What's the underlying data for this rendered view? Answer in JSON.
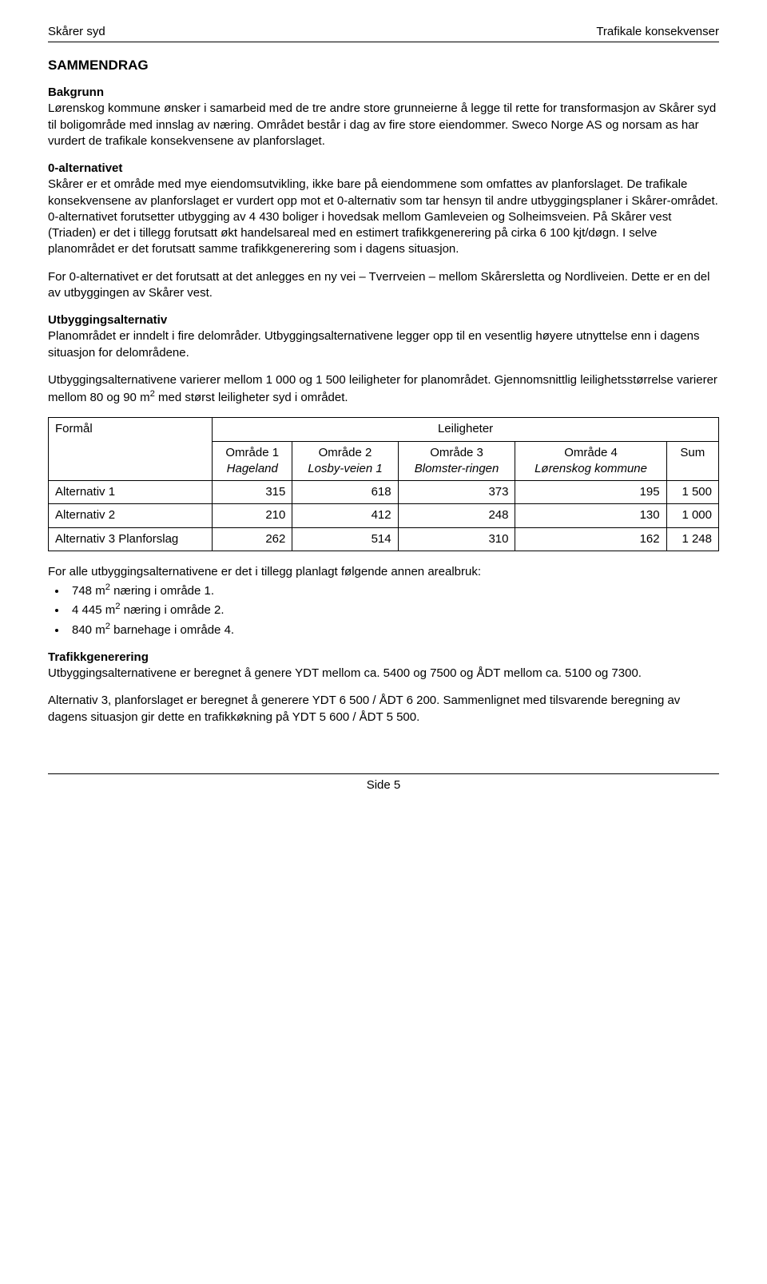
{
  "header": {
    "left": "Skårer syd",
    "right": "Trafikale konsekvenser"
  },
  "sammendrag": {
    "title": "SAMMENDRAG",
    "bakgrunn_title": "Bakgrunn",
    "bakgrunn_text": "Lørenskog kommune ønsker i samarbeid med de tre andre store grunneierne å legge til rette for transformasjon av Skårer syd til boligområde med innslag av næring. Området består i dag av fire store eiendommer. Sweco Norge AS og norsam as har vurdert de trafikale konsekvensene av planforslaget.",
    "null_alt_title": "0-alternativet",
    "null_alt_p1": "Skårer er et område med mye eiendomsutvikling, ikke bare på eiendommene som omfattes av planforslaget. De trafikale konsekvensene av planforslaget er vurdert opp mot et 0-alternativ som tar hensyn til andre utbyggingsplaner i Skårer-området. 0-alternativet forutsetter utbygging av 4 430 boliger i hovedsak mellom Gamleveien og Solheimsveien. På Skårer vest (Triaden) er det i tillegg forutsatt økt handelsareal med en estimert trafikkgenerering på cirka 6 100 kjt/døgn. I selve planområdet er det forutsatt samme trafikkgenerering som i dagens situasjon.",
    "null_alt_p2": "For 0-alternativet er det forutsatt at det anlegges en ny vei – Tverrveien – mellom Skårersletta og Nordliveien. Dette er en del av utbyggingen av Skårer vest.",
    "utbygging_title": "Utbyggingsalternativ",
    "utbygging_p1": "Planområdet er inndelt i fire delområder. Utbyggingsalternativene legger opp til en vesentlig høyere utnyttelse enn i dagens situasjon for delområdene.",
    "utbygging_p2_pre": "Utbyggingsalternativene varierer mellom 1 000 og 1 500 leiligheter for planområdet. Gjennomsnittlig leilighetsstørrelse varierer mellom 80 og 90 m",
    "utbygging_p2_post": " med størst leiligheter syd i området."
  },
  "table": {
    "formal": "Formål",
    "leiligheter": "Leiligheter",
    "cols": [
      {
        "name": "Område 1",
        "sub": "Hageland"
      },
      {
        "name": "Område 2",
        "sub": "Losby-veien 1"
      },
      {
        "name": "Område 3",
        "sub": "Blomster-ringen"
      },
      {
        "name": "Område 4",
        "sub": "Lørenskog kommune"
      },
      {
        "name": "Sum",
        "sub": ""
      }
    ],
    "rows": [
      {
        "label": "Alternativ 1",
        "v": [
          "315",
          "618",
          "373",
          "195",
          "1 500"
        ]
      },
      {
        "label": "Alternativ 2",
        "v": [
          "210",
          "412",
          "248",
          "130",
          "1 000"
        ]
      },
      {
        "label": "Alternativ 3 Planforslag",
        "v": [
          "262",
          "514",
          "310",
          "162",
          "1 248"
        ]
      }
    ]
  },
  "areal": {
    "intro": "For alle utbyggingsalternativene er det i tillegg planlagt følgende annen arealbruk:",
    "items": [
      {
        "val": "748 m",
        "suffix": " næring i område 1."
      },
      {
        "val": "4 445 m",
        "suffix": " næring i område 2."
      },
      {
        "val": "840 m",
        "suffix": " barnehage i område 4."
      }
    ]
  },
  "trafikkgen": {
    "title": "Trafikkgenerering",
    "p1": "Utbyggingsalternativene er beregnet å genere YDT mellom ca. 5400 og 7500 og ÅDT mellom ca. 5100 og 7300.",
    "p2": "Alternativ 3, planforslaget er beregnet å generere YDT 6 500 / ÅDT 6 200. Sammenlignet med tilsvarende beregning av dagens situasjon gir dette en trafikkøkning på YDT 5 600 / ÅDT 5 500."
  },
  "footer": {
    "text": "Side 5"
  }
}
